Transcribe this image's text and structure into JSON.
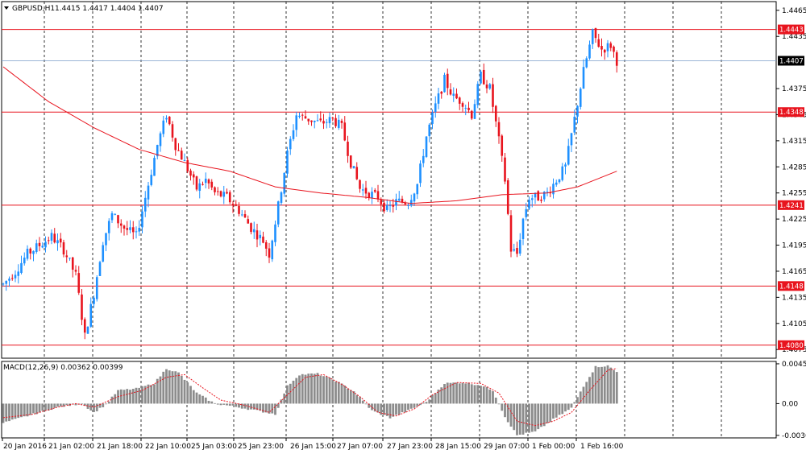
{
  "header": {
    "symbol_label": "GBPUSD,H1",
    "ohlc_text": "1.4415 1.4417 1.4404 1.4407"
  },
  "colors": {
    "bull": "#1e90ff",
    "bear": "#e8141e",
    "ma": "#e8141e",
    "level": "#e8141e",
    "grid": "#000000",
    "macd_hist": "#8c8c8c",
    "current_tag": "#000000"
  },
  "chart_data": [
    {
      "type": "candlestick",
      "title": "",
      "ylim": [
        1.4065,
        1.4475
      ],
      "y_ticks": [
        "1.4465",
        "1.4435",
        "1.4375",
        "1.4345",
        "1.4315",
        "1.4285",
        "1.4255",
        "1.4225",
        "1.4195",
        "1.4165",
        "1.4135",
        "1.4105",
        "1.4075"
      ],
      "x_ticks": [
        "20 Jan 2016",
        "21 Jan 02:00",
        "21 Jan 18:00",
        "22 Jan 10:00",
        "25 Jan 03:00",
        "25 Jan 23:00",
        "26 Jan 15:00",
        "27 Jan 07:00",
        "27 Jan 23:00",
        "28 Jan 15:00",
        "29 Jan 07:00",
        "1 Feb 00:00",
        "1 Feb 16:00"
      ],
      "levels": [
        "1.4443",
        "1.4348",
        "1.4241",
        "1.4148",
        "1.4080"
      ],
      "current_price": "1.4407",
      "ma_period_note": "",
      "anchors": [
        [
          0,
          1.415
        ],
        [
          4,
          1.4165
        ],
        [
          8,
          1.4185
        ],
        [
          12,
          1.4195
        ],
        [
          16,
          1.4205
        ],
        [
          20,
          1.419
        ],
        [
          24,
          1.416
        ],
        [
          27,
          1.409
        ],
        [
          30,
          1.414
        ],
        [
          33,
          1.42
        ],
        [
          36,
          1.423
        ],
        [
          40,
          1.4215
        ],
        [
          44,
          1.4205
        ],
        [
          47,
          1.425
        ],
        [
          51,
          1.431
        ],
        [
          54,
          1.4345
        ],
        [
          57,
          1.431
        ],
        [
          60,
          1.429
        ],
        [
          64,
          1.426
        ],
        [
          67,
          1.427
        ],
        [
          70,
          1.4255
        ],
        [
          74,
          1.425
        ],
        [
          78,
          1.4235
        ],
        [
          82,
          1.4215
        ],
        [
          86,
          1.42
        ],
        [
          88,
          1.4185
        ],
        [
          91,
          1.424
        ],
        [
          94,
          1.43
        ],
        [
          97,
          1.4345
        ],
        [
          101,
          1.434
        ],
        [
          105,
          1.4335
        ],
        [
          109,
          1.434
        ],
        [
          112,
          1.433
        ],
        [
          115,
          1.429
        ],
        [
          118,
          1.426
        ],
        [
          121,
          1.4255
        ],
        [
          124,
          1.425
        ],
        [
          127,
          1.4235
        ],
        [
          130,
          1.4245
        ],
        [
          134,
          1.4245
        ],
        [
          137,
          1.4265
        ],
        [
          140,
          1.432
        ],
        [
          143,
          1.4355
        ],
        [
          146,
          1.4385
        ],
        [
          149,
          1.4365
        ],
        [
          152,
          1.436
        ],
        [
          155,
          1.4345
        ],
        [
          158,
          1.439
        ],
        [
          161,
          1.4375
        ],
        [
          164,
          1.4315
        ],
        [
          166,
          1.427
        ],
        [
          168,
          1.419
        ],
        [
          170,
          1.4185
        ],
        [
          172,
          1.4225
        ],
        [
          174,
          1.425
        ],
        [
          177,
          1.425
        ],
        [
          180,
          1.4255
        ],
        [
          183,
          1.427
        ],
        [
          186,
          1.4285
        ],
        [
          189,
          1.434
        ],
        [
          192,
          1.4395
        ],
        [
          195,
          1.4438
        ],
        [
          198,
          1.442
        ],
        [
          201,
          1.4425
        ],
        [
          203,
          1.4407
        ]
      ],
      "moving_average": [
        [
          0,
          1.44
        ],
        [
          15,
          1.436
        ],
        [
          30,
          1.433
        ],
        [
          45,
          1.4305
        ],
        [
          60,
          1.429
        ],
        [
          75,
          1.428
        ],
        [
          90,
          1.4262
        ],
        [
          105,
          1.4255
        ],
        [
          120,
          1.425
        ],
        [
          135,
          1.4243
        ],
        [
          150,
          1.4246
        ],
        [
          165,
          1.4253
        ],
        [
          180,
          1.4255
        ],
        [
          190,
          1.4262
        ],
        [
          203,
          1.428
        ]
      ]
    },
    {
      "type": "histogram",
      "title": "MACD(12,26,9) 0.00362 0.00399",
      "ylim": [
        -0.0039,
        0.0048
      ],
      "y_ticks": [
        "0.00453",
        "0.00",
        "-0.00361"
      ],
      "hist_anchors": [
        [
          0,
          -0.0022
        ],
        [
          10,
          -0.0012
        ],
        [
          18,
          -0.0004
        ],
        [
          26,
          0.0
        ],
        [
          30,
          -0.001
        ],
        [
          34,
          -0.0001
        ],
        [
          38,
          0.0015
        ],
        [
          44,
          0.0017
        ],
        [
          50,
          0.0023
        ],
        [
          54,
          0.004
        ],
        [
          58,
          0.0035
        ],
        [
          64,
          0.0012
        ],
        [
          70,
          0.0
        ],
        [
          76,
          -0.0003
        ],
        [
          84,
          -0.0008
        ],
        [
          90,
          -0.0012
        ],
        [
          94,
          0.002
        ],
        [
          98,
          0.0033
        ],
        [
          104,
          0.0034
        ],
        [
          110,
          0.0026
        ],
        [
          116,
          0.0014
        ],
        [
          122,
          -0.0008
        ],
        [
          128,
          -0.0016
        ],
        [
          134,
          -0.0008
        ],
        [
          140,
          0.0002
        ],
        [
          146,
          0.0023
        ],
        [
          152,
          0.0024
        ],
        [
          158,
          0.0021
        ],
        [
          162,
          0.0015
        ],
        [
          166,
          -0.0015
        ],
        [
          170,
          -0.0036
        ],
        [
          176,
          -0.0032
        ],
        [
          182,
          -0.0018
        ],
        [
          188,
          -0.0005
        ],
        [
          192,
          0.002
        ],
        [
          196,
          0.0042
        ],
        [
          200,
          0.0043
        ],
        [
          203,
          0.0036
        ]
      ],
      "signal_anchors": [
        [
          0,
          -0.0016
        ],
        [
          10,
          -0.0012
        ],
        [
          18,
          -0.0004
        ],
        [
          24,
          0.0
        ],
        [
          30,
          -0.0004
        ],
        [
          38,
          0.0008
        ],
        [
          46,
          0.0015
        ],
        [
          54,
          0.003
        ],
        [
          60,
          0.0033
        ],
        [
          66,
          0.0018
        ],
        [
          72,
          0.0004
        ],
        [
          80,
          -0.0002
        ],
        [
          88,
          -0.001
        ],
        [
          94,
          0.001
        ],
        [
          100,
          0.003
        ],
        [
          106,
          0.0033
        ],
        [
          112,
          0.0022
        ],
        [
          118,
          0.0008
        ],
        [
          124,
          -0.001
        ],
        [
          130,
          -0.0014
        ],
        [
          136,
          -0.0006
        ],
        [
          142,
          0.001
        ],
        [
          150,
          0.0024
        ],
        [
          158,
          0.0023
        ],
        [
          164,
          0.0012
        ],
        [
          170,
          -0.002
        ],
        [
          176,
          -0.0025
        ],
        [
          182,
          -0.002
        ],
        [
          188,
          -0.001
        ],
        [
          194,
          0.0015
        ],
        [
          200,
          0.0038
        ],
        [
          203,
          0.004
        ]
      ]
    }
  ]
}
